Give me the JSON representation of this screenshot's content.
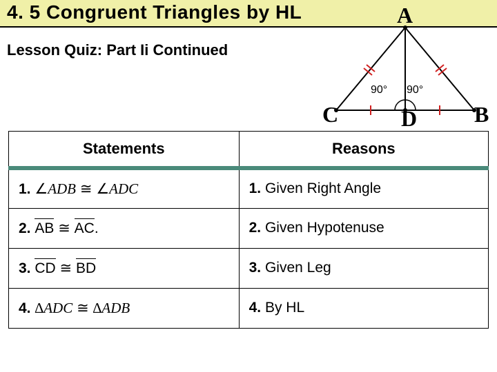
{
  "title": "4. 5 Congruent Triangles by HL",
  "subtitle": "Lesson Quiz: Part Ii Continued",
  "diagram": {
    "vertices": {
      "A": "A",
      "B": "B",
      "C": "C",
      "D": "D"
    },
    "angles": {
      "left": "90°",
      "right": "90°"
    },
    "stroke": "#000000",
    "tick_color": "#d02020"
  },
  "table": {
    "headers": {
      "statements": "Statements",
      "reasons": "Reasons"
    },
    "rows": [
      {
        "num": "1.",
        "stmt_html": "<span class='sym'>∠</span><span class='math'>ADB</span> <span class='sym'>≅</span> <span class='sym'>∠</span><span class='math'>ADC</span>",
        "reason_num": "1.",
        "reason": "Given Right Angle"
      },
      {
        "num": "2.",
        "stmt_html": "<span class='seg'>AB</span> <span class='sym'>≅</span> <span class='seg'>AC</span>.",
        "reason_num": "2.",
        "reason": "Given Hypotenuse"
      },
      {
        "num": "3.",
        "stmt_html": "<span class='seg'>CD</span> <span class='sym'>≅</span> <span class='seg'>BD</span>",
        "reason_num": "3.",
        "reason": "Given Leg"
      },
      {
        "num": "4.",
        "stmt_html": "<span class='sym'>∆</span><span class='math'>ADC</span> <span class='sym'>≅</span> <span class='sym'>∆</span><span class='math'>ADB</span>",
        "reason_num": "4.",
        "reason": "By HL"
      }
    ]
  }
}
